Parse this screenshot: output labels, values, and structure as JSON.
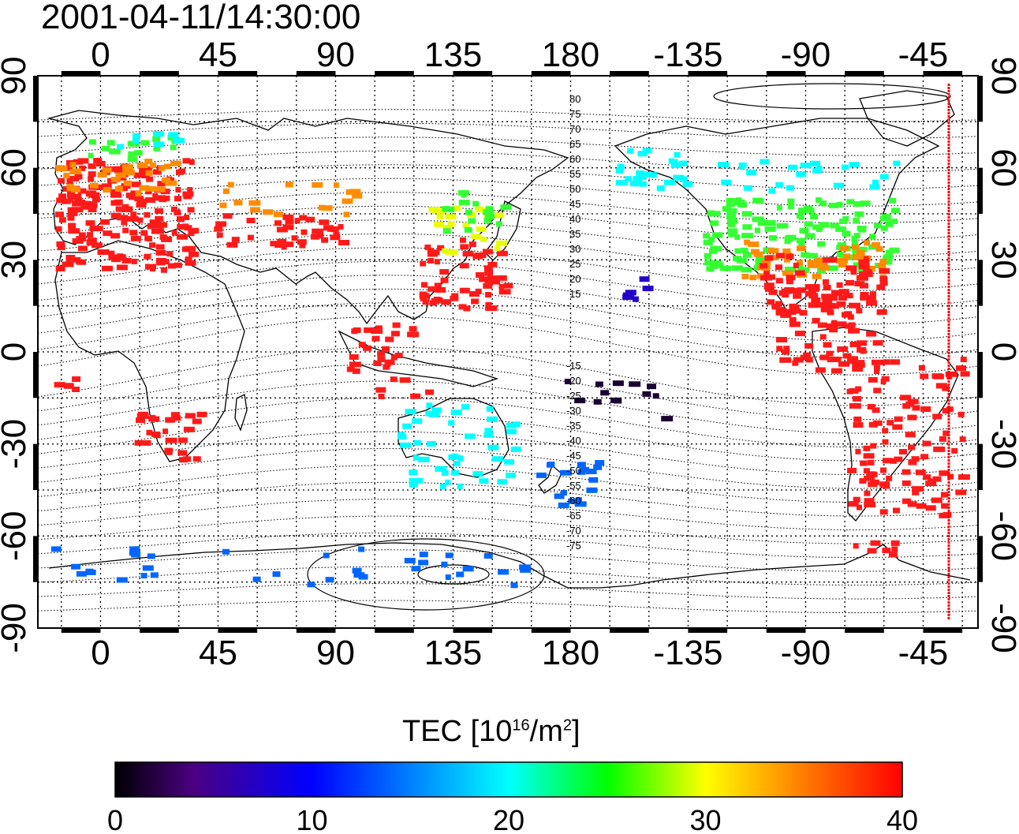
{
  "title": "2001-04-11/14:30:00",
  "map": {
    "lon_ticks_top": [
      "0",
      "45",
      "90",
      "135",
      "180",
      "-135",
      "-90",
      "-45"
    ],
    "lon_ticks_bottom": [
      "0",
      "45",
      "90",
      "135",
      "180",
      "-135",
      "-90",
      "-45"
    ],
    "lat_ticks_left": [
      "90",
      "60",
      "30",
      "0",
      "-30",
      "-60",
      "-90"
    ],
    "lat_ticks_right": [
      "90",
      "60",
      "30",
      "0",
      "-30",
      "-60",
      "-90"
    ],
    "mlat_labels_north": [
      "80",
      "75",
      "70",
      "65",
      "60",
      "55",
      "50",
      "45",
      "40",
      "35",
      "30",
      "25",
      "20",
      "15"
    ],
    "mlat_labels_south": [
      "-15",
      "-20",
      "-25",
      "-30",
      "-35",
      "-40",
      "-45",
      "-50",
      "-55",
      "-60",
      "-65",
      "-70",
      "-75"
    ],
    "terminator_color": "#ff0000",
    "terminator_lon": -53
  },
  "colorbar": {
    "label_prefix": "TEC  [10",
    "label_exp": "16",
    "label_mid": "/m",
    "label_exp2": "2",
    "label_suffix": "]",
    "ticks": [
      "0",
      "10",
      "20",
      "30",
      "40"
    ],
    "range": [
      0,
      40
    ],
    "colors": [
      "#000000",
      "#4b0082",
      "#0000ff",
      "#00ffff",
      "#00ff00",
      "#ffff00",
      "#ff8000",
      "#ff0000"
    ]
  }
}
